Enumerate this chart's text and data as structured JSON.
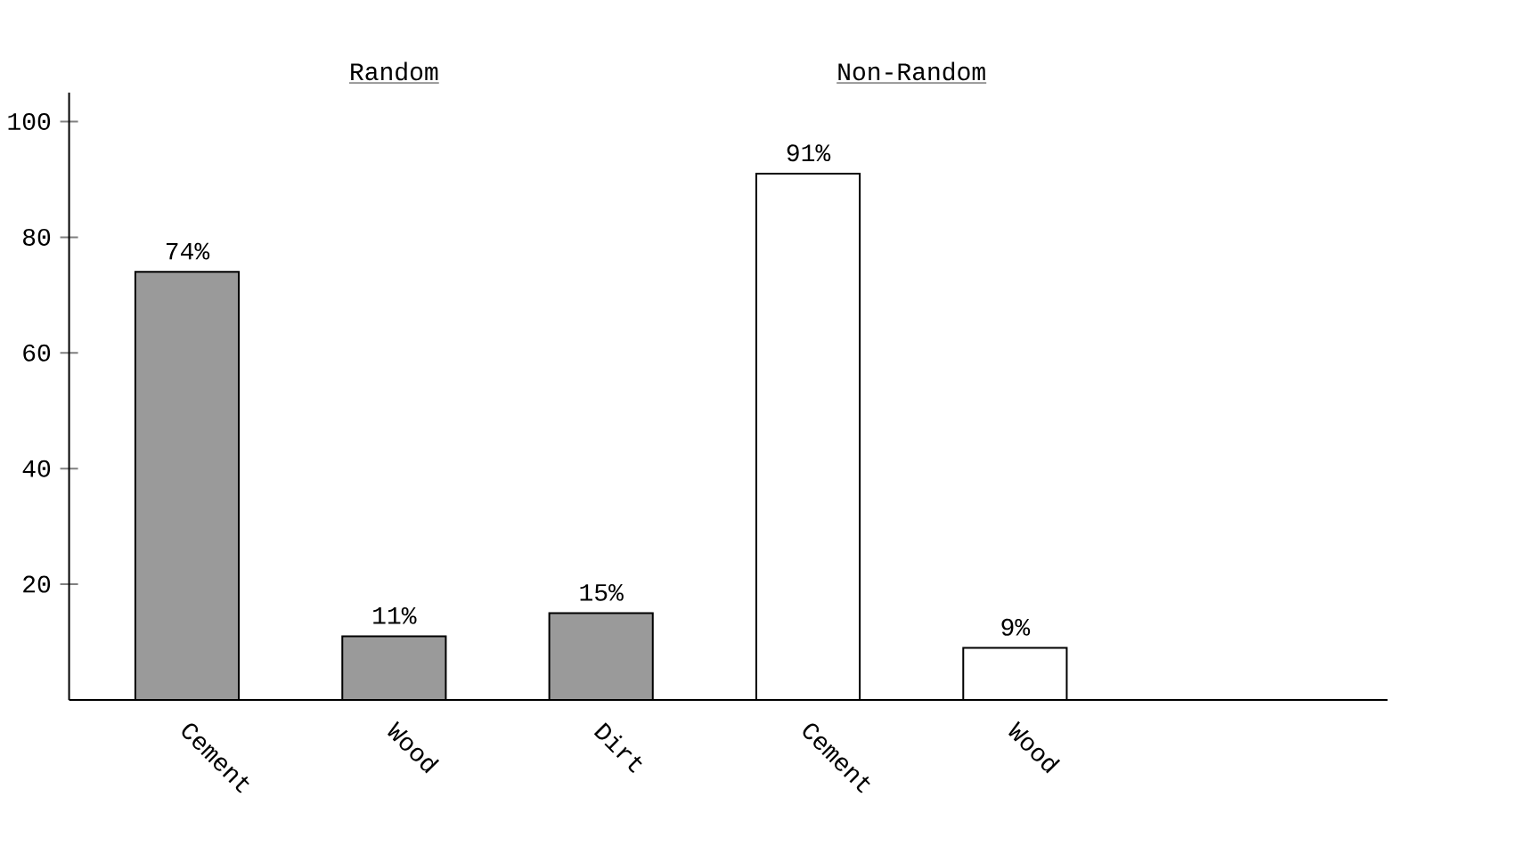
{
  "chart_data": {
    "type": "bar",
    "categories": [
      "Cement",
      "Wood",
      "Dirt",
      "Cement",
      "Wood"
    ],
    "series": [
      {
        "color": "#9a9a9a",
        "values": [
          74,
          11,
          15,
          null,
          null
        ],
        "value_labels": [
          "74%",
          "11%",
          "15%",
          null,
          null
        ]
      },
      {
        "color": "#ffffff",
        "values": [
          null,
          null,
          null,
          91,
          9
        ],
        "value_labels": [
          null,
          null,
          null,
          "91%",
          "9%"
        ]
      }
    ],
    "annotations": [
      "Random",
      "Non-Random"
    ],
    "ylim": [
      0,
      105
    ],
    "yticks": [
      20,
      40,
      60,
      80,
      100
    ]
  }
}
